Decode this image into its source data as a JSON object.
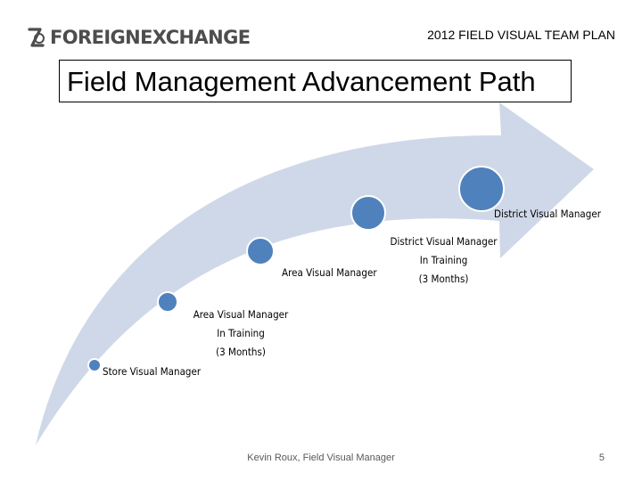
{
  "header": {
    "logo_text": "FOREIGNEXCHANGE",
    "plan_title": "2012 FIELD VISUAL TEAM PLAN"
  },
  "slide": {
    "title": "Field Management Advancement Path"
  },
  "colors": {
    "arrow_fill": "#cfd8e8",
    "node_fill": "#4f81bd",
    "node_stroke": "#ffffff"
  },
  "steps": [
    {
      "label": "Store Visual Manager"
    },
    {
      "lines": [
        "Area Visual Manager",
        "In Training",
        "(3 Months)"
      ]
    },
    {
      "label": "Area Visual Manager"
    },
    {
      "lines": [
        "District Visual Manager",
        "In Training",
        "(3 Months)"
      ]
    },
    {
      "label": "District Visual Manager"
    }
  ],
  "footer": {
    "presenter": "Kevin Roux, Field Visual Manager",
    "page_number": "5"
  }
}
